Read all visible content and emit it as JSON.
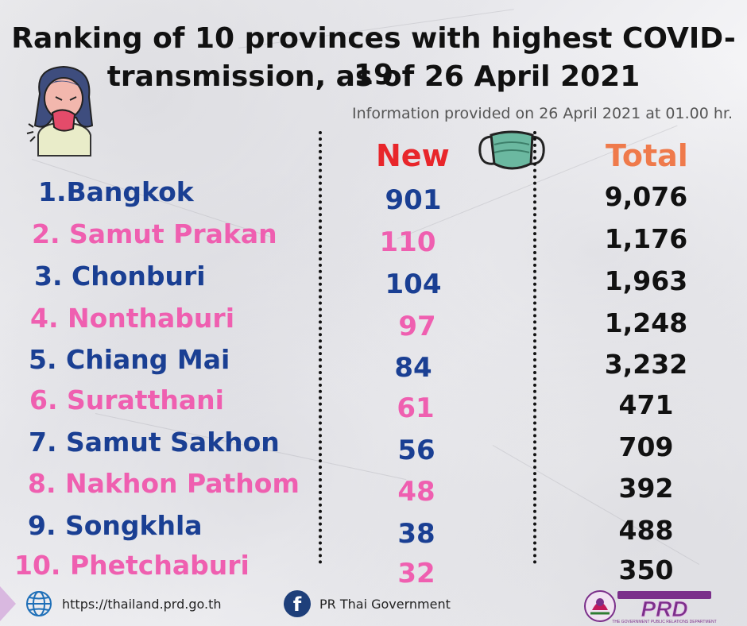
{
  "title": {
    "line1": "Ranking of 10 provinces with highest COVID-19",
    "line2": "transmission, as of 26 April 2021"
  },
  "info": "Information provided on 26 April 2021 at 01.00 hr.",
  "columns": {
    "new": "New",
    "total": "Total"
  },
  "colors": {
    "blue": "#1a3f93",
    "pink": "#ef5fb0",
    "new_header": "#e8262b",
    "total_header": "#ef7a4b"
  },
  "rows": [
    {
      "province": "1.Bangkok",
      "new": "901",
      "total": "9,076",
      "color": "blue"
    },
    {
      "province": "2. Samut Prakan",
      "new": "110",
      "total": "1,176",
      "color": "pink"
    },
    {
      "province": "3. Chonburi",
      "new": "104",
      "total": "1,963",
      "color": "blue"
    },
    {
      "province": "4. Nonthaburi",
      "new": "97",
      "total": "1,248",
      "color": "pink"
    },
    {
      "province": "5. Chiang Mai",
      "new": "84",
      "total": "3,232",
      "color": "blue"
    },
    {
      "province": "6. Suratthani",
      "new": "61",
      "total": "471",
      "color": "pink"
    },
    {
      "province": "7. Samut Sakhon",
      "new": "56",
      "total": "709",
      "color": "blue"
    },
    {
      "province": "8. Nakhon Pathom",
      "new": "48",
      "total": "392",
      "color": "pink"
    },
    {
      "province": "9. Songkhla",
      "new": "38",
      "total": "488",
      "color": "blue"
    },
    {
      "province": "10. Phetchaburi",
      "new": "32",
      "total": "350",
      "color": "pink"
    }
  ],
  "footer": {
    "website": "https://thailand.prd.go.th",
    "facebook": "PR Thai Government",
    "globe_icon": "globe-icon",
    "facebook_icon": "facebook-icon"
  },
  "logo": {
    "text": "PRD",
    "tagline": "THE GOVERNMENT PUBLIC RELATIONS DEPARTMENT"
  }
}
